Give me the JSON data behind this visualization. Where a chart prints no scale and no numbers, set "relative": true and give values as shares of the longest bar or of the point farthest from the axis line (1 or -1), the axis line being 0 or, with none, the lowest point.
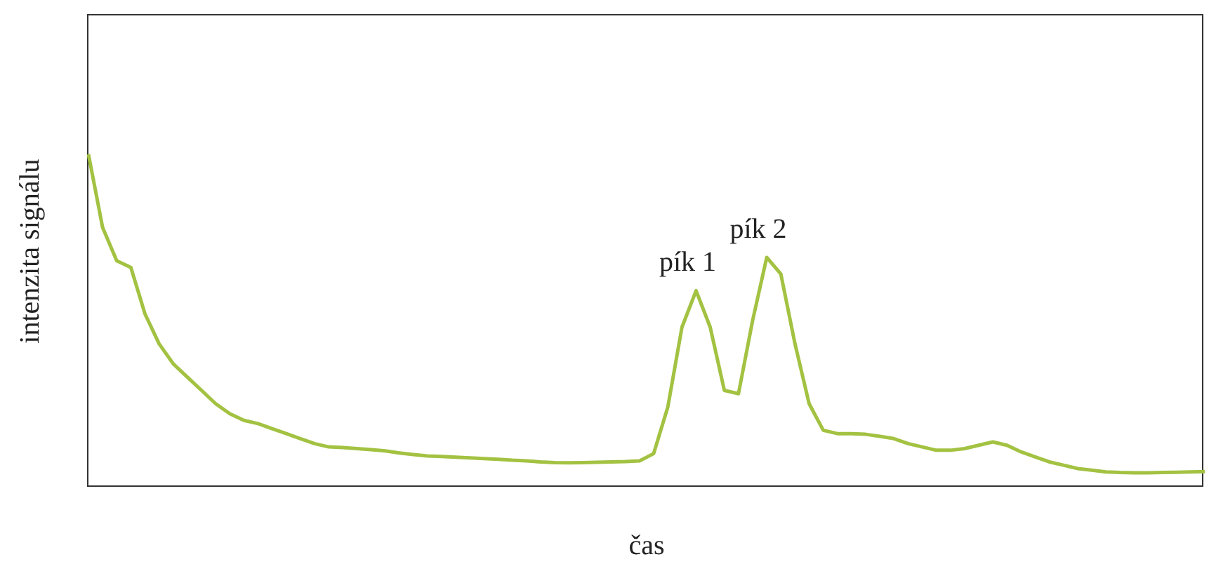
{
  "chart_data": {
    "type": "line",
    "relative": true,
    "xlabel": "čas",
    "ylabel": "intenzita signálu",
    "categories": [
      null,
      null,
      null,
      null,
      null,
      null,
      null,
      null,
      null,
      null,
      null,
      null,
      null,
      null,
      null,
      null,
      null,
      null,
      null,
      null,
      null,
      null,
      null,
      null,
      null,
      null,
      null,
      null,
      null,
      null,
      null,
      null,
      null,
      null,
      null,
      null,
      null,
      null,
      null,
      null,
      null,
      null,
      null,
      null,
      null,
      null,
      null,
      null,
      null,
      null,
      null,
      null,
      null,
      null,
      null,
      null,
      null,
      null,
      null,
      null,
      null,
      null,
      null,
      null,
      null,
      null,
      null,
      null,
      null,
      null,
      null,
      null,
      null,
      null,
      null,
      null,
      null,
      null,
      null,
      null
    ],
    "series": [
      {
        "color": "#a3c242",
        "values": [
          1.0,
          0.78,
          0.68,
          0.66,
          0.52,
          0.43,
          0.37,
          0.33,
          0.29,
          0.25,
          0.22,
          0.2,
          0.19,
          0.175,
          0.16,
          0.145,
          0.13,
          0.12,
          0.118,
          0.115,
          0.112,
          0.108,
          0.102,
          0.097,
          0.093,
          0.091,
          0.089,
          0.087,
          0.085,
          0.083,
          0.08,
          0.078,
          0.075,
          0.073,
          0.072,
          0.073,
          0.074,
          0.075,
          0.076,
          0.078,
          0.1,
          0.24,
          0.48,
          0.59,
          0.48,
          0.29,
          0.28,
          0.5,
          0.69,
          0.64,
          0.43,
          0.25,
          0.17,
          0.16,
          0.16,
          0.158,
          0.152,
          0.145,
          0.13,
          0.12,
          0.11,
          0.11,
          0.115,
          0.125,
          0.135,
          0.125,
          0.105,
          0.09,
          0.075,
          0.065,
          0.055,
          0.05,
          0.045,
          0.043,
          0.042,
          0.042,
          0.043,
          0.044,
          0.045,
          0.046
        ]
      }
    ],
    "annotations": [
      {
        "text": "pík 1",
        "y": 0.59
      },
      {
        "text": "pík 2",
        "y": 0.69
      }
    ]
  }
}
